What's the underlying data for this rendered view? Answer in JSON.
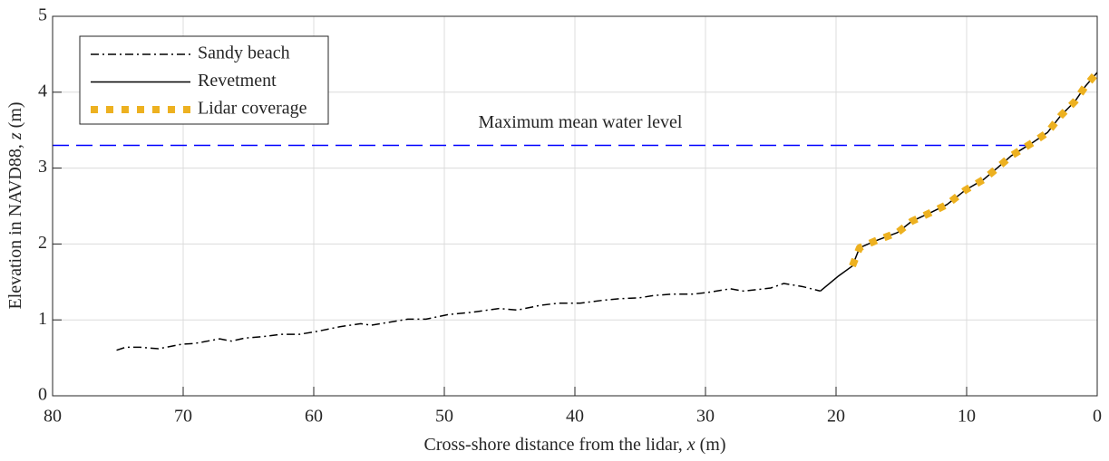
{
  "chart_data": {
    "type": "line",
    "xlabel": {
      "text": "Cross-shore distance from the lidar, ",
      "var": "x",
      "unit": " (m)"
    },
    "ylabel": {
      "text": "Elevation in NAVD88, ",
      "var": "z",
      "unit": " (m)"
    },
    "xlim": [
      80,
      0
    ],
    "ylim": [
      0,
      5
    ],
    "xticks": [
      80,
      70,
      60,
      50,
      40,
      30,
      20,
      10,
      0
    ],
    "yticks": [
      0,
      1,
      2,
      3,
      4,
      5
    ],
    "grid": true,
    "legend": "upper left",
    "series": [
      {
        "name": "Sandy beach",
        "color": "#000000",
        "linestyle": "-.",
        "x": [
          75.1,
          74.4,
          73.3,
          71.9,
          70.1,
          69.1,
          67.2,
          66.3,
          65.3,
          63.9,
          62.5,
          61.1,
          59.7,
          58.0,
          56.4,
          55.6,
          54.2,
          52.8,
          51.4,
          49.7,
          47.9,
          45.8,
          44.4,
          42.7,
          41.3,
          39.6,
          37.8,
          36.5,
          35.1,
          34.0,
          32.6,
          30.9,
          29.5,
          28.1,
          27.1,
          26.0,
          25.0,
          24.0,
          22.6,
          21.2
        ],
        "values": [
          0.6,
          0.64,
          0.64,
          0.62,
          0.68,
          0.69,
          0.75,
          0.72,
          0.76,
          0.78,
          0.81,
          0.81,
          0.85,
          0.91,
          0.95,
          0.93,
          0.97,
          1.01,
          1.01,
          1.07,
          1.1,
          1.15,
          1.13,
          1.19,
          1.22,
          1.22,
          1.26,
          1.28,
          1.29,
          1.32,
          1.34,
          1.34,
          1.37,
          1.41,
          1.38,
          1.4,
          1.42,
          1.48,
          1.44,
          1.38
        ]
      },
      {
        "name": "Revetment",
        "color": "#000000",
        "linestyle": "-",
        "x": [
          21.2,
          19.8,
          18.75,
          18.2,
          17.0,
          15.3,
          14.2,
          12.8,
          11.5,
          10.1,
          8.7,
          7.6,
          6.6,
          5.0,
          3.8,
          2.8,
          1.7,
          0.9,
          0
        ],
        "values": [
          1.38,
          1.58,
          1.71,
          1.95,
          2.04,
          2.15,
          2.3,
          2.41,
          2.52,
          2.71,
          2.85,
          3.01,
          3.16,
          3.33,
          3.47,
          3.69,
          3.88,
          4.08,
          4.26
        ]
      },
      {
        "name": "Lidar coverage",
        "color": "#EDB120",
        "linestyle": ":",
        "x": [
          18.75,
          18.2,
          17.0,
          15.3,
          14.2,
          12.8,
          11.5,
          10.1,
          8.7,
          7.6,
          6.6,
          5.0,
          3.8,
          2.8,
          1.7,
          0.9,
          0
        ],
        "values": [
          1.71,
          1.95,
          2.04,
          2.15,
          2.3,
          2.41,
          2.52,
          2.71,
          2.85,
          3.01,
          3.16,
          3.33,
          3.47,
          3.69,
          3.88,
          4.08,
          4.26
        ]
      }
    ],
    "reference_line": {
      "label": "Maximum mean water level",
      "value": 3.3,
      "x": [
        80,
        5
      ],
      "color": "#0000FF"
    }
  }
}
